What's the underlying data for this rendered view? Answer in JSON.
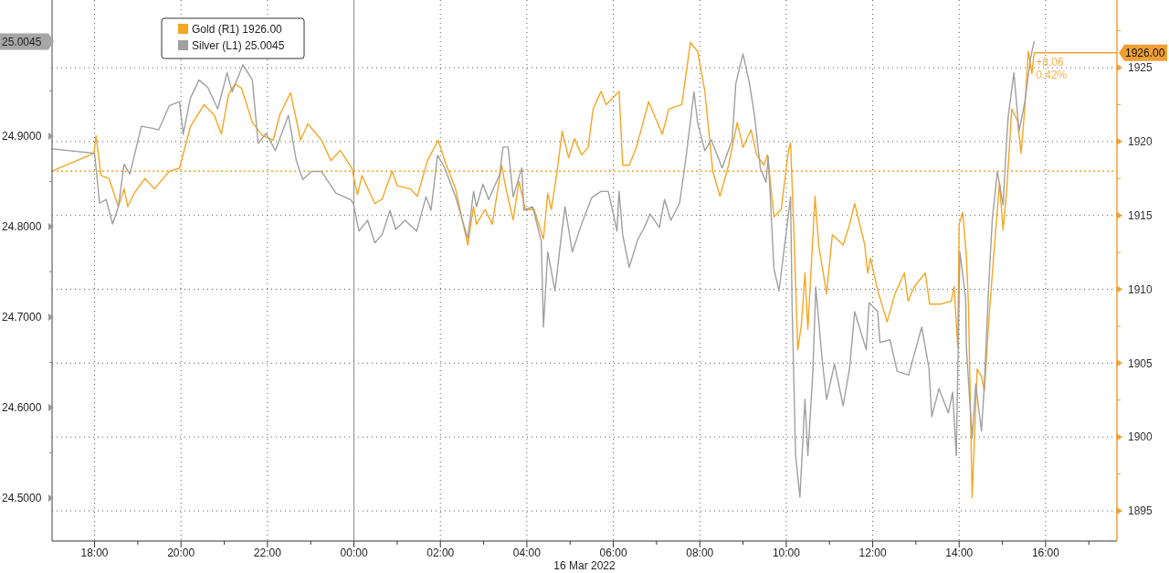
{
  "chart_data": {
    "type": "line",
    "xlabel": "16 Mar 2022",
    "legend": "top left",
    "grid": true,
    "xlim": [
      "2022-03-15T17:01",
      "2022-03-16T17:39"
    ],
    "xticks": [
      {
        "value": "2022-03-15T18:00",
        "label": "18:00"
      },
      {
        "value": "2022-03-15T19:00",
        "label": null
      },
      {
        "value": "2022-03-15T20:00",
        "label": "20:00"
      },
      {
        "value": "2022-03-15T21:00",
        "label": null
      },
      {
        "value": "2022-03-15T22:00",
        "label": "22:00"
      },
      {
        "value": "2022-03-15T23:00",
        "label": null
      },
      {
        "value": "2022-03-16T00:00",
        "label": "00:00"
      },
      {
        "value": "2022-03-16T01:00",
        "label": null
      },
      {
        "value": "2022-03-16T02:00",
        "label": "02:00"
      },
      {
        "value": "2022-03-16T03:00",
        "label": null
      },
      {
        "value": "2022-03-16T04:00",
        "label": "04:00"
      },
      {
        "value": "2022-03-16T05:00",
        "label": null
      },
      {
        "value": "2022-03-16T06:00",
        "label": "06:00"
      },
      {
        "value": "2022-03-16T07:00",
        "label": null
      },
      {
        "value": "2022-03-16T08:00",
        "label": "08:00"
      },
      {
        "value": "2022-03-16T09:00",
        "label": null
      },
      {
        "value": "2022-03-16T10:00",
        "label": "10:00"
      },
      {
        "value": "2022-03-16T11:00",
        "label": null
      },
      {
        "value": "2022-03-16T12:00",
        "label": "12:00"
      },
      {
        "value": "2022-03-16T13:00",
        "label": null
      },
      {
        "value": "2022-03-16T14:00",
        "label": "14:00"
      },
      {
        "value": "2022-03-16T15:00",
        "label": null
      },
      {
        "value": "2022-03-16T16:00",
        "label": "16:00"
      },
      {
        "value": "2022-03-16T17:00",
        "label": null
      }
    ],
    "ylim": [
      24.4525,
      25.0505
    ],
    "yticks": [
      {
        "value": 24.5,
        "label": "24.5000"
      },
      {
        "value": 24.55,
        "label": null
      },
      {
        "value": 24.6,
        "label": "24.6000"
      },
      {
        "value": 24.65,
        "label": null
      },
      {
        "value": 24.7,
        "label": "24.7000"
      },
      {
        "value": 24.75,
        "label": null
      },
      {
        "value": 24.8,
        "label": "24.8000"
      },
      {
        "value": 24.85,
        "label": null
      },
      {
        "value": 24.9,
        "label": "24.9000"
      },
      {
        "value": 24.95,
        "label": null
      },
      {
        "value": 25.0045,
        "label": "25.0045"
      }
    ],
    "y2lim": [
      1892.96,
      1929.58
    ],
    "y2ticks": [
      1895,
      {
        "value": 1897.5,
        "label": null
      },
      1900,
      {
        "value": 1902.5,
        "label": null
      },
      1905,
      {
        "value": 1907.5,
        "label": null
      },
      1910,
      {
        "value": 1912.5,
        "label": null
      },
      1915,
      {
        "value": 1917.5,
        "label": null
      },
      1920,
      {
        "value": 1922.5,
        "label": null
      },
      1925,
      {
        "value": 1926,
        "label": "1926.00"
      },
      {
        "value": 1927.5,
        "label": null
      }
    ],
    "ref_lines": [
      {
        "axis": "y2",
        "value": 1918,
        "color": "#f5a623",
        "line_style": "dotted"
      },
      {
        "axis": "x",
        "value": "2022-03-16T00:00",
        "color": "#8c8c8c",
        "line_style": "solid"
      }
    ],
    "annotations": [
      "+8.06",
      "0.42%"
    ],
    "series": [
      {
        "name": "Gold (R1)  1926.00",
        "color": "#f5a623",
        "axis": "y2",
        "x": [
          "2022-03-15T17:01",
          "2022-03-15T17:59",
          "2022-03-15T18:02",
          "2022-03-15T18:09",
          "2022-03-15T18:20",
          "2022-03-15T18:33",
          "2022-03-15T18:41",
          "2022-03-15T18:46",
          "2022-03-15T18:55",
          "2022-03-15T19:10",
          "2022-03-15T19:23",
          "2022-03-15T19:44",
          "2022-03-15T19:58",
          "2022-03-15T20:13",
          "2022-03-15T20:32",
          "2022-03-15T20:46",
          "2022-03-15T20:56",
          "2022-03-15T21:06",
          "2022-03-15T21:15",
          "2022-03-15T21:24",
          "2022-03-15T21:39",
          "2022-03-15T21:53",
          "2022-03-15T22:08",
          "2022-03-15T22:17",
          "2022-03-15T22:32",
          "2022-03-15T22:46",
          "2022-03-15T22:56",
          "2022-03-15T23:15",
          "2022-03-15T23:28",
          "2022-03-15T23:41",
          "2022-03-15T23:57",
          "2022-03-16T00:05",
          "2022-03-16T00:11",
          "2022-03-16T00:29",
          "2022-03-16T00:39",
          "2022-03-16T00:53",
          "2022-03-16T01:00",
          "2022-03-16T01:18",
          "2022-03-16T01:28",
          "2022-03-16T01:42",
          "2022-03-16T01:57",
          "2022-03-16T02:06",
          "2022-03-16T02:21",
          "2022-03-16T02:38",
          "2022-03-16T02:46",
          "2022-03-16T02:50",
          "2022-03-16T03:02",
          "2022-03-16T03:12",
          "2022-03-16T03:25",
          "2022-03-16T03:31",
          "2022-03-16T03:41",
          "2022-03-16T03:49",
          "2022-03-16T03:58",
          "2022-03-16T04:10",
          "2022-03-16T04:23",
          "2022-03-16T04:29",
          "2022-03-16T04:34",
          "2022-03-16T04:42",
          "2022-03-16T04:49",
          "2022-03-16T04:58",
          "2022-03-16T05:06",
          "2022-03-16T05:16",
          "2022-03-16T05:25",
          "2022-03-16T05:32",
          "2022-03-16T05:43",
          "2022-03-16T05:50",
          "2022-03-16T06:08",
          "2022-03-16T06:13",
          "2022-03-16T06:22",
          "2022-03-16T06:32",
          "2022-03-16T06:49",
          "2022-03-16T07:08",
          "2022-03-16T07:17",
          "2022-03-16T07:35",
          "2022-03-16T07:47",
          "2022-03-16T07:57",
          "2022-03-16T08:07",
          "2022-03-16T08:18",
          "2022-03-16T08:28",
          "2022-03-16T08:40",
          "2022-03-16T08:52",
          "2022-03-16T09:00",
          "2022-03-16T09:11",
          "2022-03-16T09:19",
          "2022-03-16T09:29",
          "2022-03-16T09:34",
          "2022-03-16T09:43",
          "2022-03-16T09:53",
          "2022-03-16T10:03",
          "2022-03-16T10:06",
          "2022-03-16T10:11",
          "2022-03-16T10:16",
          "2022-03-16T10:21",
          "2022-03-16T10:26",
          "2022-03-16T10:30",
          "2022-03-16T10:40",
          "2022-03-16T10:45",
          "2022-03-16T10:56",
          "2022-03-16T11:04",
          "2022-03-16T11:19",
          "2022-03-16T11:28",
          "2022-03-16T11:35",
          "2022-03-16T11:49",
          "2022-03-16T11:53",
          "2022-03-16T11:57",
          "2022-03-16T12:07",
          "2022-03-16T12:20",
          "2022-03-16T12:31",
          "2022-03-16T12:44",
          "2022-03-16T12:49",
          "2022-03-16T12:58",
          "2022-03-16T13:13",
          "2022-03-16T13:19",
          "2022-03-16T13:35",
          "2022-03-16T13:49",
          "2022-03-16T13:53",
          "2022-03-16T13:58",
          "2022-03-16T14:00",
          "2022-03-16T14:05",
          "2022-03-16T14:10",
          "2022-03-16T14:13",
          "2022-03-16T14:18",
          "2022-03-16T14:25",
          "2022-03-16T14:31",
          "2022-03-16T14:35",
          "2022-03-16T14:41",
          "2022-03-16T14:48",
          "2022-03-16T14:56",
          "2022-03-16T15:01",
          "2022-03-16T15:06",
          "2022-03-16T15:13",
          "2022-03-16T15:21",
          "2022-03-16T15:26",
          "2022-03-16T15:31",
          "2022-03-16T15:36",
          "2022-03-16T15:41",
          "2022-03-16T15:44"
        ],
        "values": [
          1918.0,
          1919.2,
          1920.4,
          1917.7,
          1917.5,
          1915.6,
          1916.8,
          1915.6,
          1916.5,
          1917.5,
          1916.8,
          1918.0,
          1918.2,
          1921.0,
          1922.5,
          1921.8,
          1920.5,
          1923.2,
          1923.9,
          1923.6,
          1921.3,
          1920.4,
          1920.1,
          1921.8,
          1923.3,
          1920.1,
          1921.2,
          1920.1,
          1918.7,
          1919.4,
          1918.2,
          1916.4,
          1917.7,
          1915.8,
          1916.1,
          1918.0,
          1917.0,
          1916.8,
          1916.3,
          1918.7,
          1920.1,
          1918.7,
          1916.8,
          1913.0,
          1915.6,
          1914.4,
          1915.4,
          1914.4,
          1918.4,
          1916.8,
          1914.7,
          1917.3,
          1915.4,
          1915.4,
          1913.4,
          1916.5,
          1915.4,
          1918.0,
          1920.7,
          1918.9,
          1920.2,
          1919.1,
          1919.6,
          1922.2,
          1923.4,
          1922.5,
          1923.4,
          1918.4,
          1918.4,
          1919.6,
          1922.7,
          1920.5,
          1922.2,
          1922.5,
          1926.7,
          1926.1,
          1923.4,
          1918.0,
          1916.3,
          1918.4,
          1921.3,
          1919.6,
          1920.8,
          1919.1,
          1918.4,
          1919.1,
          1914.9,
          1915.4,
          1919.4,
          1919.9,
          1913.4,
          1905.9,
          1907.6,
          1911.1,
          1907.3,
          1916.3,
          1913.0,
          1909.7,
          1913.7,
          1913.0,
          1914.4,
          1915.8,
          1913.0,
          1911.1,
          1912.1,
          1909.9,
          1907.8,
          1909.7,
          1911.1,
          1909.2,
          1910.2,
          1911.1,
          1909.0,
          1909.0,
          1909.2,
          1910.2,
          1906.1,
          1914.4,
          1915.2,
          1912.3,
          1908.8,
          1895.9,
          1904.6,
          1904.1,
          1903.1,
          1907.8,
          1912.3,
          1917.2,
          1914.0,
          1916.7,
          1922.2,
          1921.4,
          1919.2,
          1922.2,
          1926.1,
          1924.6,
          1926.0
        ]
      },
      {
        "name": "Silver (L1) 25.0045",
        "color": "#a0a0a0",
        "x": [
          "2022-03-15T17:01",
          "2022-03-15T18:00",
          "2022-03-15T18:07",
          "2022-03-15T18:16",
          "2022-03-15T18:25",
          "2022-03-15T18:33",
          "2022-03-15T18:41",
          "2022-03-15T18:49",
          "2022-03-15T19:05",
          "2022-03-15T19:19",
          "2022-03-15T19:29",
          "2022-03-15T19:44",
          "2022-03-15T19:58",
          "2022-03-15T20:03",
          "2022-03-15T20:13",
          "2022-03-15T20:25",
          "2022-03-15T20:37",
          "2022-03-15T20:51",
          "2022-03-15T21:04",
          "2022-03-15T21:11",
          "2022-03-15T21:26",
          "2022-03-15T21:39",
          "2022-03-15T21:47",
          "2022-03-15T21:58",
          "2022-03-15T22:11",
          "2022-03-15T22:29",
          "2022-03-15T22:40",
          "2022-03-15T22:49",
          "2022-03-15T23:01",
          "2022-03-15T23:15",
          "2022-03-15T23:35",
          "2022-03-15T23:55",
          "2022-03-15T23:59",
          "2022-03-16T00:07",
          "2022-03-16T00:19",
          "2022-03-16T00:29",
          "2022-03-16T00:39",
          "2022-03-16T00:50",
          "2022-03-16T00:58",
          "2022-03-16T01:11",
          "2022-03-16T01:27",
          "2022-03-16T01:40",
          "2022-03-16T01:47",
          "2022-03-16T01:56",
          "2022-03-16T02:06",
          "2022-03-16T02:21",
          "2022-03-16T02:38",
          "2022-03-16T02:46",
          "2022-03-16T02:50",
          "2022-03-16T02:59",
          "2022-03-16T03:07",
          "2022-03-16T03:22",
          "2022-03-16T03:27",
          "2022-03-16T03:34",
          "2022-03-16T03:41",
          "2022-03-16T03:53",
          "2022-03-16T03:56",
          "2022-03-16T04:08",
          "2022-03-16T04:20",
          "2022-03-16T04:23",
          "2022-03-16T04:29",
          "2022-03-16T04:39",
          "2022-03-16T04:47",
          "2022-03-16T04:53",
          "2022-03-16T05:03",
          "2022-03-16T05:16",
          "2022-03-16T05:30",
          "2022-03-16T05:43",
          "2022-03-16T05:53",
          "2022-03-16T06:05",
          "2022-03-16T06:08",
          "2022-03-16T06:13",
          "2022-03-16T06:22",
          "2022-03-16T06:34",
          "2022-03-16T06:43",
          "2022-03-16T06:51",
          "2022-03-16T07:04",
          "2022-03-16T07:11",
          "2022-03-16T07:20",
          "2022-03-16T07:32",
          "2022-03-16T07:41",
          "2022-03-16T07:52",
          "2022-03-16T07:57",
          "2022-03-16T08:07",
          "2022-03-16T08:16",
          "2022-03-16T08:31",
          "2022-03-16T08:45",
          "2022-03-16T08:50",
          "2022-03-16T09:00",
          "2022-03-16T09:09",
          "2022-03-16T09:16",
          "2022-03-16T09:24",
          "2022-03-16T09:32",
          "2022-03-16T09:35",
          "2022-03-16T09:43",
          "2022-03-16T09:50",
          "2022-03-16T09:56",
          "2022-03-16T10:06",
          "2022-03-16T10:08",
          "2022-03-16T10:13",
          "2022-03-16T10:19",
          "2022-03-16T10:26",
          "2022-03-16T10:30",
          "2022-03-16T10:37",
          "2022-03-16T10:41",
          "2022-03-16T10:50",
          "2022-03-16T10:56",
          "2022-03-16T11:07",
          "2022-03-16T11:19",
          "2022-03-16T11:28",
          "2022-03-16T11:35",
          "2022-03-16T11:51",
          "2022-03-16T11:55",
          "2022-03-16T12:07",
          "2022-03-16T12:10",
          "2022-03-16T12:24",
          "2022-03-16T12:34",
          "2022-03-16T12:50",
          "2022-03-16T12:58",
          "2022-03-16T13:08",
          "2022-03-16T13:18",
          "2022-03-16T13:22",
          "2022-03-16T13:32",
          "2022-03-16T13:45",
          "2022-03-16T13:51",
          "2022-03-16T13:56",
          "2022-03-16T14:01",
          "2022-03-16T14:09",
          "2022-03-16T14:10",
          "2022-03-16T14:18",
          "2022-03-16T14:23",
          "2022-03-16T14:31",
          "2022-03-16T14:35",
          "2022-03-16T14:41",
          "2022-03-16T14:46",
          "2022-03-16T14:53",
          "2022-03-16T15:01",
          "2022-03-16T15:06",
          "2022-03-16T15:08",
          "2022-03-16T15:16",
          "2022-03-16T15:23",
          "2022-03-16T15:31",
          "2022-03-16T15:39",
          "2022-03-16T15:44"
        ],
        "values": [
          24.886,
          24.881,
          24.826,
          24.83,
          24.803,
          24.822,
          24.869,
          24.858,
          24.911,
          24.909,
          24.907,
          24.934,
          24.938,
          24.902,
          24.942,
          24.962,
          24.954,
          24.93,
          24.97,
          24.949,
          24.979,
          24.962,
          24.892,
          24.903,
          24.884,
          24.923,
          24.873,
          24.852,
          24.861,
          24.861,
          24.837,
          24.83,
          24.826,
          24.795,
          24.807,
          24.782,
          24.791,
          24.818,
          24.797,
          24.807,
          24.795,
          24.833,
          24.818,
          24.879,
          24.865,
          24.833,
          24.787,
          24.839,
          24.822,
          24.847,
          24.83,
          24.857,
          24.888,
          24.888,
          24.833,
          24.865,
          24.818,
          24.822,
          24.784,
          24.689,
          24.772,
          24.729,
          24.784,
          24.822,
          24.772,
          24.803,
          24.832,
          24.839,
          24.839,
          24.795,
          24.839,
          24.791,
          24.755,
          24.786,
          24.799,
          24.814,
          24.799,
          24.83,
          24.807,
          24.826,
          24.877,
          24.949,
          24.915,
          24.884,
          24.896,
          24.865,
          24.896,
          24.958,
          24.991,
          24.958,
          24.923,
          24.865,
          24.849,
          24.877,
          24.753,
          24.729,
          24.768,
          24.833,
          24.717,
          24.547,
          24.501,
          24.609,
          24.547,
          24.64,
          24.733,
          24.652,
          24.609,
          24.648,
          24.602,
          24.644,
          24.706,
          24.664,
          24.716,
          24.706,
          24.672,
          24.675,
          24.64,
          24.636,
          24.66,
          24.689,
          24.644,
          24.59,
          24.621,
          24.594,
          24.617,
          24.547,
          24.772,
          24.721,
          24.667,
          24.566,
          24.626,
          24.574,
          24.626,
          24.735,
          24.808,
          24.861,
          24.824,
          24.897,
          24.921,
          24.97,
          24.905,
          24.937,
          24.986,
          25.0045
        ]
      }
    ]
  }
}
